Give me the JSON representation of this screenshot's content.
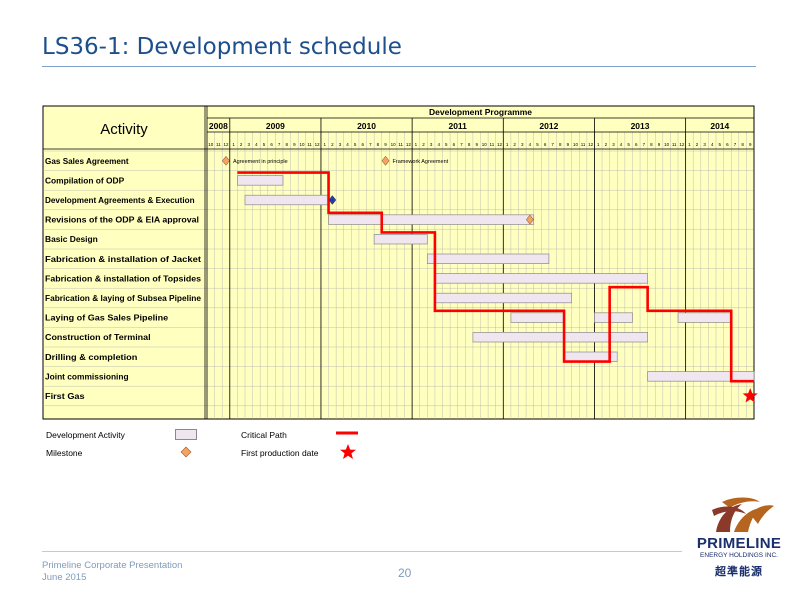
{
  "slide": {
    "title": "LS36-1: Development schedule",
    "page_number": "20",
    "footer_line1": "Primeline Corporate Presentation",
    "footer_line2": "June 2015"
  },
  "logo": {
    "name": "PRIMELINE",
    "subname": "ENERGY HOLDINGS INC.",
    "chinese": "超準能源"
  },
  "colors": {
    "grid_bg": "#ffffc0",
    "bar_fill": "#f0e6f0",
    "critical_path": "#ff0000",
    "milestone_orange": "#f4a460",
    "milestone_blue": "#1f3fa8",
    "title": "#1d4f8c"
  },
  "legend": {
    "development_activity": "Development Activity",
    "milestone": "Milestone",
    "critical_path": "Critical Path",
    "first_production": "First production date"
  },
  "chart_data": {
    "type": "gantt",
    "activity_header": "Activity",
    "programme_header": "Development Programme",
    "years": [
      {
        "label": "2008",
        "months": 3
      },
      {
        "label": "2009",
        "months": 12
      },
      {
        "label": "2010",
        "months": 12
      },
      {
        "label": "2011",
        "months": 12
      },
      {
        "label": "2012",
        "months": 12
      },
      {
        "label": "2013",
        "months": 12
      },
      {
        "label": "2014",
        "months": 9
      }
    ],
    "month_labels": [
      "10",
      "11",
      "12",
      "1",
      "2",
      "3",
      "4",
      "5",
      "6",
      "7",
      "8",
      "9",
      "10",
      "11",
      "12",
      "1",
      "2",
      "3",
      "4",
      "5",
      "6",
      "7",
      "8",
      "9",
      "10",
      "11",
      "12",
      "1",
      "2",
      "3",
      "4",
      "5",
      "6",
      "7",
      "8",
      "9",
      "10",
      "11",
      "12",
      "1",
      "2",
      "3",
      "4",
      "5",
      "6",
      "7",
      "8",
      "9",
      "10",
      "11",
      "12",
      "1",
      "2",
      "3",
      "4",
      "5",
      "6",
      "7",
      "8",
      "9",
      "10",
      "11",
      "12",
      "1",
      "2",
      "3",
      "4",
      "5",
      "6",
      "7",
      "8",
      "9"
    ],
    "activities": [
      "Gas Sales Agreement",
      "Compilation of ODP",
      "Development Agreements & Execution",
      "Revisions of the ODP & EIA approval",
      "Basic Design",
      "Fabrication & installation of Jacket",
      "Fabrication & installation of Topsides",
      "Fabrication & laying of Subsea Pipeline",
      "Laying of Gas Sales Pipeline",
      "Construction of Terminal",
      "Drilling & completion",
      "Joint commissioning",
      "First Gas"
    ],
    "bars": [
      {
        "row": 1,
        "start": "2009-02",
        "end": "2009-07"
      },
      {
        "row": 2,
        "start": "2009-03",
        "end": "2010-01"
      },
      {
        "row": 3,
        "start": "2010-02",
        "end": "2012-04"
      },
      {
        "row": 4,
        "start": "2010-08",
        "end": "2011-02"
      },
      {
        "row": 5,
        "start": "2011-03",
        "end": "2012-06"
      },
      {
        "row": 6,
        "start": "2011-04",
        "end": "2013-07"
      },
      {
        "row": 7,
        "start": "2011-04",
        "end": "2012-09"
      },
      {
        "row": 8,
        "start": "2012-02",
        "end": "2012-08"
      },
      {
        "row": 8,
        "start": "2013-01",
        "end": "2013-05"
      },
      {
        "row": 8,
        "start": "2013-12",
        "end": "2014-06"
      },
      {
        "row": 9,
        "start": "2011-09",
        "end": "2013-07"
      },
      {
        "row": 10,
        "start": "2012-09",
        "end": "2013-03"
      },
      {
        "row": 11,
        "start": "2013-08",
        "end": "2014-09"
      }
    ],
    "milestones": [
      {
        "row": 0,
        "date": "2008-12",
        "label": "Agreement in principle",
        "color": "orange"
      },
      {
        "row": 0,
        "date": "2010-09",
        "label": "Framework Agreement",
        "color": "orange"
      },
      {
        "row": 2,
        "date": "2010-02",
        "label": "",
        "color": "blue"
      },
      {
        "row": 3,
        "date": "2012-04",
        "label": "",
        "color": "orange"
      },
      {
        "row": 12,
        "date": "2014-09",
        "label": "",
        "color": "star"
      }
    ],
    "critical_path": [
      {
        "date": "2009-02",
        "row": 0.75
      },
      {
        "date": "2010-02",
        "row": 0.75
      },
      {
        "date": "2010-02",
        "row": 2.75
      },
      {
        "date": "2010-09",
        "row": 2.75
      },
      {
        "date": "2010-09",
        "row": 3.75
      },
      {
        "date": "2011-04",
        "row": 3.75
      },
      {
        "date": "2011-04",
        "row": 4.75
      },
      {
        "date": "2011-04",
        "row": 9.6
      },
      {
        "date": "2012-09",
        "row": 9.6
      },
      {
        "date": "2012-09",
        "row": 9.6
      },
      {
        "date": "2012-09",
        "row": 9.6
      }
    ]
  }
}
